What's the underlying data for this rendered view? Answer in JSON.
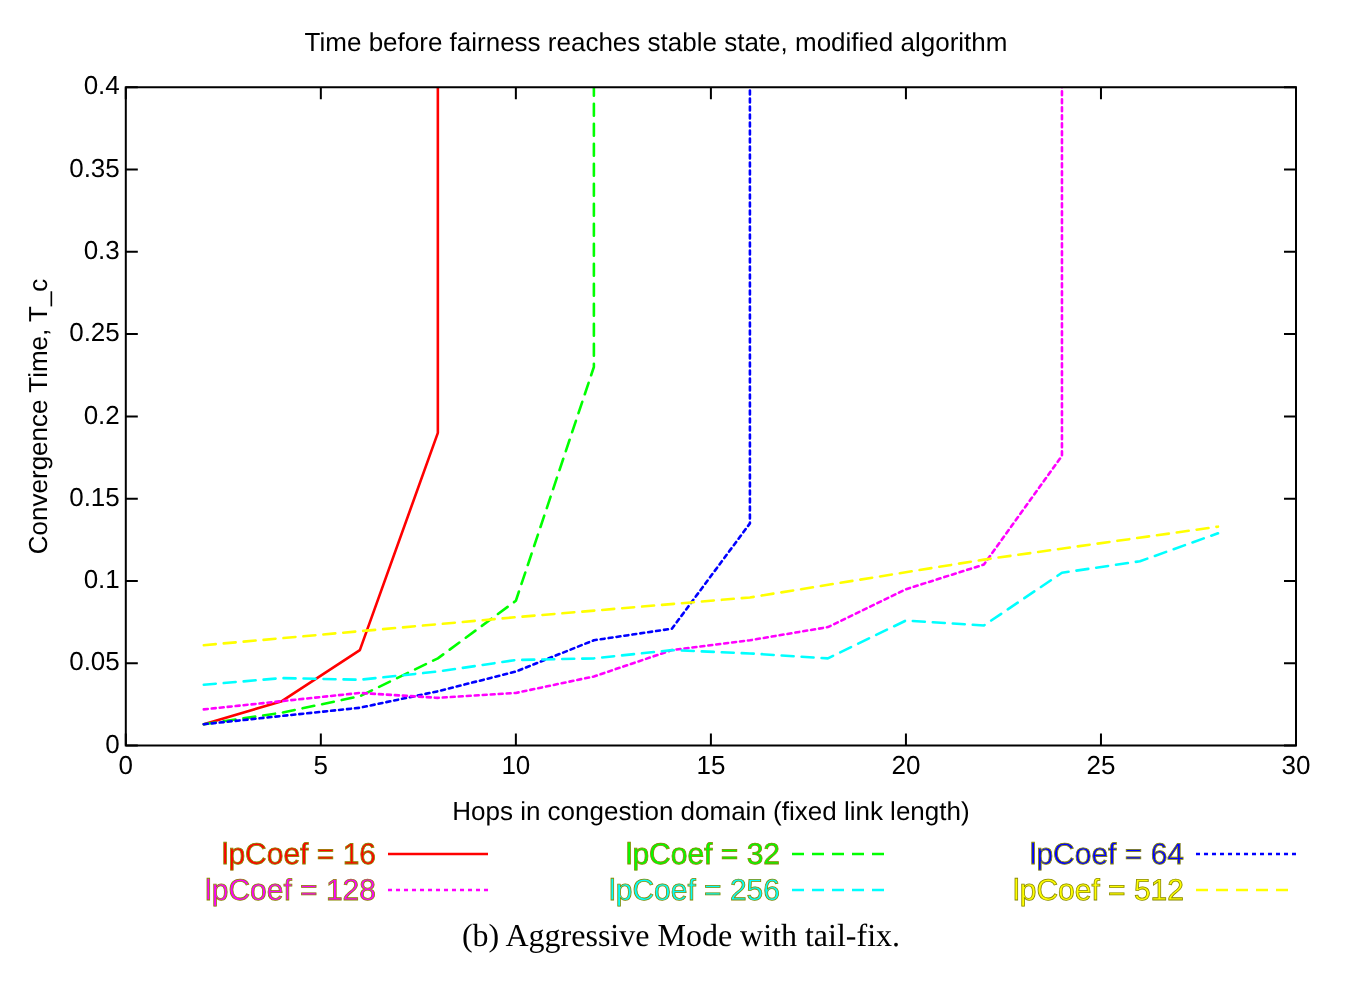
{
  "chart_data": {
    "type": "line",
    "title": "Time before fairness reaches stable state, modified algorithm",
    "xlabel": "Hops in congestion domain (fixed link length)",
    "ylabel": "Convergence Time, T_c",
    "xlim": [
      0,
      30
    ],
    "xticks": [
      0,
      5,
      10,
      15,
      20,
      25,
      30
    ],
    "ylim": [
      0,
      0.4
    ],
    "yticks": [
      0,
      0.05,
      0.1,
      0.15,
      0.2,
      0.25,
      0.3,
      0.35,
      0.4
    ],
    "grid": false,
    "legend": "bottom",
    "marker": "none",
    "annotations": [
      "(b) Aggressive Mode with tail-fix."
    ],
    "series": [
      {
        "name": "lpCoef = 16",
        "color": "#ff0000",
        "line_style": "solid",
        "x": [
          2,
          4,
          6,
          8,
          8
        ],
        "values": [
          0.013,
          0.027,
          0.058,
          0.19,
          0.4
        ]
      },
      {
        "name": "lpCoef = 32",
        "color": "#00ff00",
        "line_style": "dashed",
        "x": [
          2,
          4,
          6,
          8,
          10,
          12,
          12
        ],
        "values": [
          0.013,
          0.02,
          0.03,
          0.053,
          0.088,
          0.23,
          0.4
        ]
      },
      {
        "name": "lpCoef = 64",
        "color": "#0000ff",
        "line_style": "dotted",
        "x": [
          2,
          4,
          6,
          8,
          10,
          12,
          14,
          16,
          16
        ],
        "values": [
          0.013,
          0.018,
          0.023,
          0.033,
          0.045,
          0.064,
          0.071,
          0.135,
          0.4
        ]
      },
      {
        "name": "lpCoef = 128",
        "color": "#ff00ff",
        "line_style": "dotted",
        "x": [
          2,
          4,
          6,
          8,
          10,
          12,
          14,
          16,
          18,
          20,
          22,
          24,
          24
        ],
        "values": [
          0.022,
          0.027,
          0.032,
          0.029,
          0.032,
          0.042,
          0.058,
          0.064,
          0.072,
          0.095,
          0.11,
          0.176,
          0.4
        ]
      },
      {
        "name": "lpCoef = 256",
        "color": "#00ffff",
        "line_style": "dashed",
        "x": [
          2,
          4,
          6,
          8,
          10,
          12,
          14,
          16,
          18,
          20,
          22,
          24,
          26,
          28
        ],
        "values": [
          0.037,
          0.041,
          0.04,
          0.045,
          0.052,
          0.053,
          0.058,
          0.056,
          0.053,
          0.076,
          0.073,
          0.105,
          0.112,
          0.129
        ]
      },
      {
        "name": "lpCoef = 512",
        "color": "#ffff00",
        "line_style": "dashed",
        "x": [
          2,
          10,
          16,
          22,
          28
        ],
        "values": [
          0.061,
          0.078,
          0.09,
          0.113,
          0.133
        ]
      }
    ]
  }
}
